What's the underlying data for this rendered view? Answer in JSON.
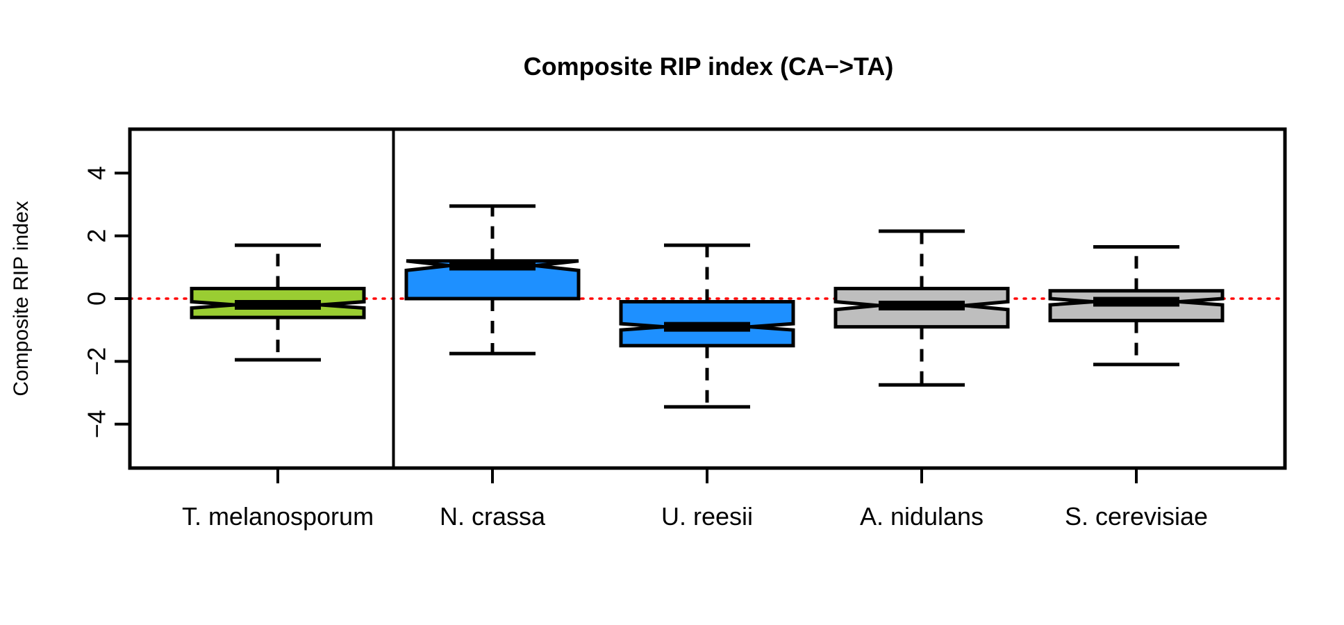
{
  "chart_data": {
    "type": "boxplot",
    "title": "Composite RIP index (CA−>TA)",
    "xlabel": "",
    "ylabel": "Composite RIP index",
    "ylim": [
      -5.4,
      5.4
    ],
    "yticks": [
      -4,
      -2,
      0,
      2,
      4
    ],
    "ytick_labels": [
      "−4",
      "−2",
      "0",
      "2",
      "4"
    ],
    "reference_line": {
      "y": 0,
      "style": "dotted",
      "color": "#ff0000"
    },
    "separator_after_category": 1,
    "categories": [
      "T. melanosporum",
      "N. crassa",
      "U. reesii",
      "A. nidulans",
      "S. cerevisiae"
    ],
    "boxes": [
      {
        "name": "T. melanosporum",
        "whisker_low": -1.95,
        "q1": -0.6,
        "median": -0.2,
        "q3": 0.32,
        "whisker_high": 1.7,
        "notch_low": -0.3,
        "notch_high": -0.1,
        "color": "#9acd32"
      },
      {
        "name": "N. crassa",
        "whisker_low": -1.75,
        "q1": 0.0,
        "median": 1.05,
        "q3": 1.2,
        "whisker_high": 2.95,
        "notch_low": 0.9,
        "notch_high": 1.2,
        "color": "#1e90ff"
      },
      {
        "name": "U. reesii",
        "whisker_low": -3.45,
        "q1": -1.5,
        "median": -0.9,
        "q3": -0.1,
        "whisker_high": 1.7,
        "notch_low": -1.0,
        "notch_high": -0.8,
        "color": "#1e90ff"
      },
      {
        "name": "A. nidulans",
        "whisker_low": -2.75,
        "q1": -0.9,
        "median": -0.22,
        "q3": 0.32,
        "whisker_high": 2.15,
        "notch_low": -0.35,
        "notch_high": -0.1,
        "color": "#bebebe"
      },
      {
        "name": "S. cerevisiae",
        "whisker_low": -2.1,
        "q1": -0.7,
        "median": -0.1,
        "q3": 0.25,
        "whisker_high": 1.65,
        "notch_low": -0.2,
        "notch_high": 0.0,
        "color": "#bebebe"
      }
    ]
  }
}
